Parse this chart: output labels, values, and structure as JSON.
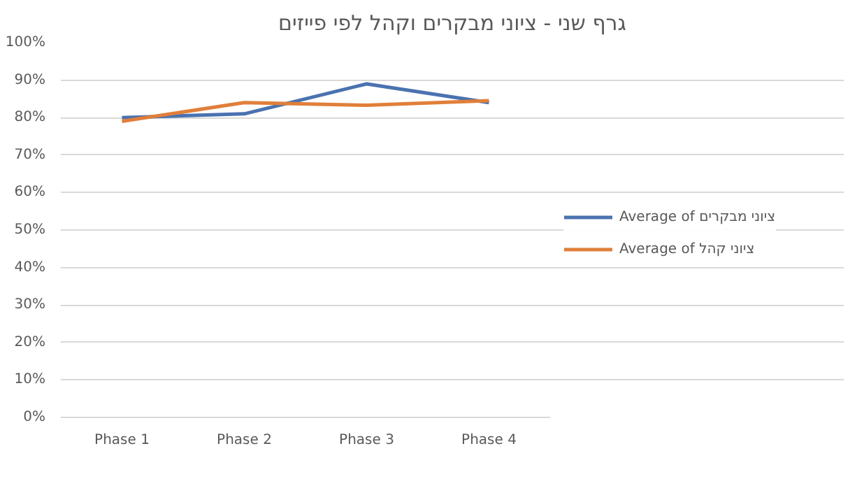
{
  "chart_data": {
    "type": "line",
    "title": "גרף שני - ציוני מבקרים וקהל לפי פייזים",
    "categories": [
      "Phase 1",
      "Phase 2",
      "Phase 3",
      "Phase 4"
    ],
    "series": [
      {
        "name": "Average of ציוני מבקרים",
        "color": "#4a72b0",
        "values": [
          80,
          81,
          89,
          84
        ]
      },
      {
        "name": "Average of ציוני קהל",
        "color": "#e07f3a",
        "values": [
          79,
          84,
          83.3,
          84.5
        ]
      }
    ],
    "ylim": [
      0,
      100
    ],
    "yticks": [
      {
        "value": 0,
        "label": "0%"
      },
      {
        "value": 10,
        "label": "10%"
      },
      {
        "value": 20,
        "label": "20%"
      },
      {
        "value": 30,
        "label": "30%"
      },
      {
        "value": 40,
        "label": "40%"
      },
      {
        "value": 50,
        "label": "50%"
      },
      {
        "value": 60,
        "label": "60%"
      },
      {
        "value": 70,
        "label": "70%"
      },
      {
        "value": 80,
        "label": "80%"
      },
      {
        "value": 90,
        "label": "90%"
      },
      {
        "value": 100,
        "label": "100%"
      }
    ],
    "grid": "y",
    "legend": "right",
    "marker": "none",
    "line_style": "solid"
  }
}
